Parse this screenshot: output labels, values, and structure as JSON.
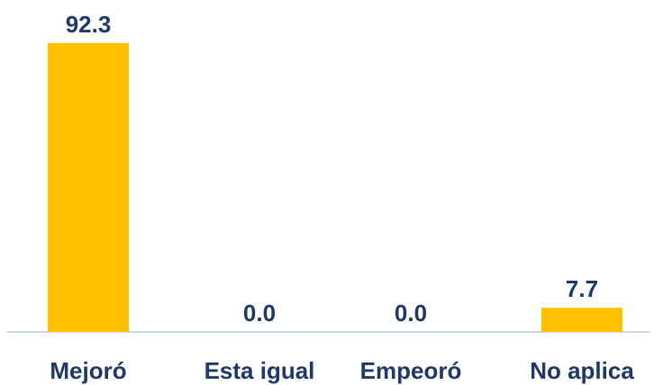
{
  "chart_data": {
    "type": "bar",
    "categories": [
      "Mejoró",
      "Esta igual",
      "Empeoró",
      "No aplica"
    ],
    "values": [
      92.3,
      0.0,
      0.0,
      7.7
    ],
    "data_labels": [
      "92.3",
      "0.0",
      "0.0",
      "7.7"
    ],
    "ylim": [
      0,
      100
    ],
    "grid": false,
    "legend": "none",
    "colors": {
      "bar": "#FFC000",
      "label": "#1F3864",
      "baseline": "#D0D7E5"
    }
  }
}
